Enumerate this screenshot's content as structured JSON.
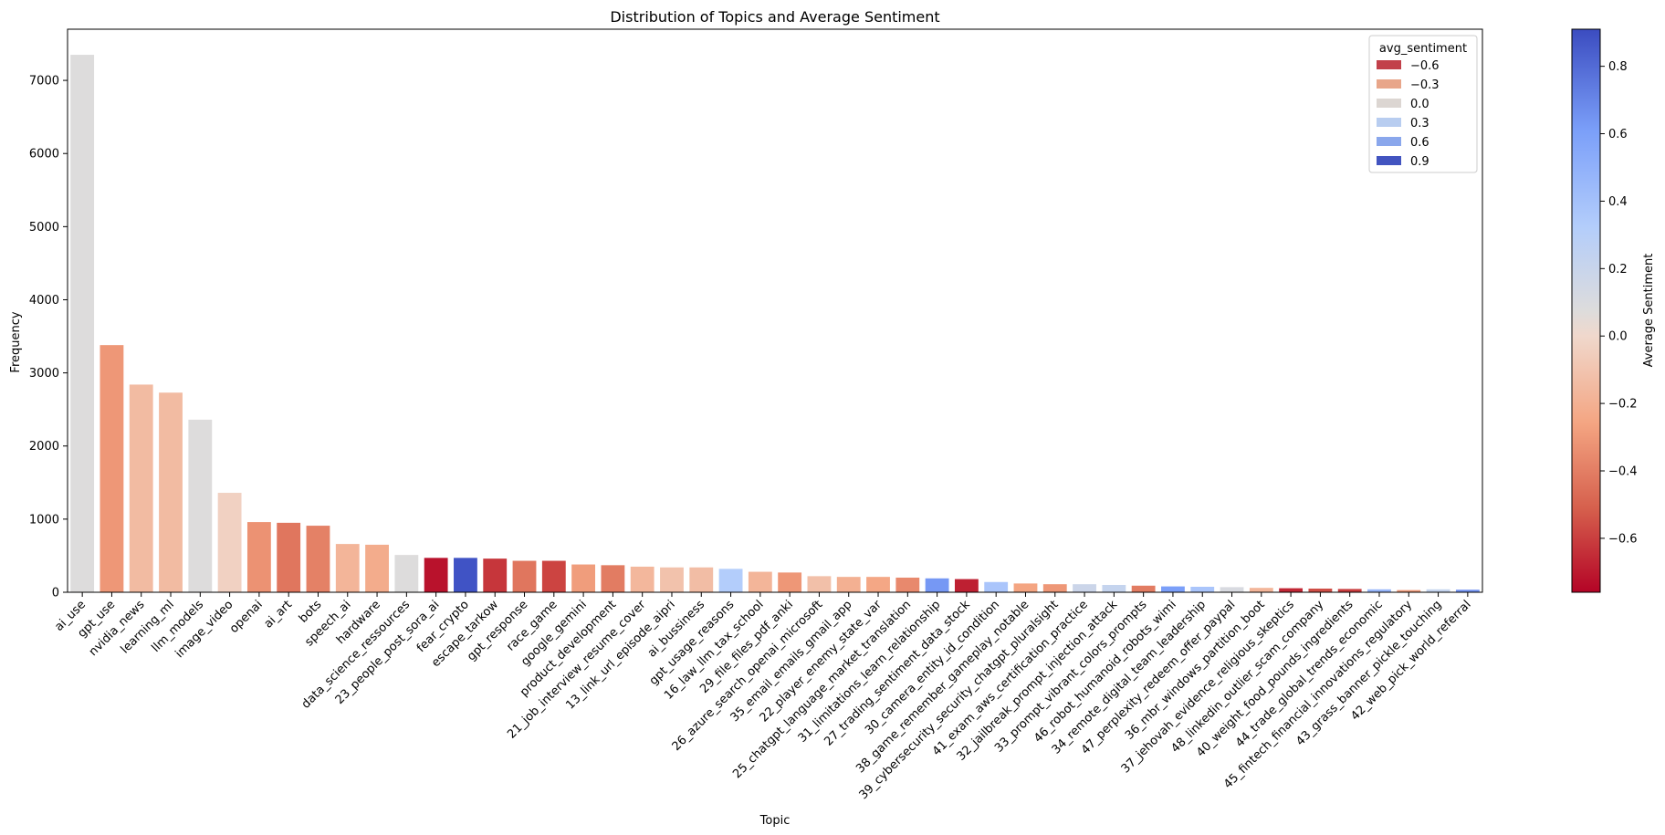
{
  "chart_data": {
    "type": "bar",
    "title": "Distribution of Topics and Average Sentiment",
    "xlabel": "Topic",
    "ylabel": "Frequency",
    "ylim": [
      0,
      7700
    ],
    "yticks": [
      0,
      1000,
      2000,
      3000,
      4000,
      5000,
      6000,
      7000
    ],
    "categories": [
      "ai_use",
      "gpt_use",
      "nvidia_news",
      "learning_ml",
      "llm_models",
      "image_video",
      "openai",
      "ai_art",
      "bots",
      "speech_ai",
      "hardware",
      "data_science_ressources",
      "23_people_post_sora_ai",
      "fear_crypto",
      "escape_tarkow",
      "gpt_response",
      "race_game",
      "google_gemini",
      "product_development",
      "21_job_interview_resume_cover",
      "13_link_url_episode_aipri",
      "ai_bussiness",
      "gpt_usage_reasons",
      "16_law_llm_tax_school",
      "29_file_files_pdf_anki",
      "26_azure_search_openai_microsoft",
      "35_email_emails_gmail_app",
      "22_player_enemy_state_var",
      "25_chatgpt_language_market_translation",
      "31_limitations_learn_relationship",
      "27_trading_sentiment_data_stock",
      "30_camera_entity_id_condition",
      "38_game_remember_gameplay_notable",
      "39_cybersecurity_security_chatgpt_pluralsight",
      "41_exam_aws_certification_practice",
      "32_jailbreak_prompt_injection_attack",
      "33_prompt_vibrant_colors_prompts",
      "46_robot_humanoid_robots_wimi",
      "34_remote_digital_team_leadership",
      "47_perplexity_redeem_offer_paypal",
      "36_mbr_windows_partition_boot",
      "37_jehovah_evidence_religious_skeptics",
      "48_linkedin_outlier_scam_company",
      "40_weight_food_pounds_ingredients",
      "44_trade_global_trends_economic",
      "45_fintech_financial_innovations_regulatory",
      "43_grass_banner_pickle_touching",
      "42_web_pick_world_referral"
    ],
    "values": [
      7350,
      3380,
      2840,
      2730,
      2360,
      1360,
      960,
      950,
      910,
      660,
      650,
      510,
      470,
      470,
      460,
      430,
      430,
      380,
      370,
      350,
      340,
      340,
      320,
      280,
      270,
      220,
      210,
      210,
      200,
      190,
      180,
      140,
      120,
      110,
      110,
      100,
      90,
      80,
      75,
      70,
      60,
      55,
      50,
      45,
      40,
      30,
      40,
      35
    ],
    "sentiment": [
      0.02,
      -0.3,
      -0.15,
      -0.15,
      0.02,
      -0.05,
      -0.32,
      -0.42,
      -0.38,
      -0.18,
      -0.22,
      0.02,
      -0.72,
      0.88,
      -0.62,
      -0.42,
      -0.58,
      -0.28,
      -0.4,
      -0.17,
      -0.12,
      -0.14,
      0.25,
      -0.18,
      -0.3,
      -0.13,
      -0.2,
      -0.24,
      -0.35,
      0.58,
      -0.68,
      0.3,
      -0.25,
      -0.3,
      0.12,
      0.15,
      -0.4,
      0.55,
      0.3,
      0.05,
      -0.18,
      -0.66,
      -0.55,
      -0.6,
      0.4,
      -0.3,
      0.15,
      0.6
    ],
    "legend": {
      "title": "avg_sentiment",
      "placement": "top-right",
      "entries": [
        {
          "label": "−0.6",
          "color": "#c2404a"
        },
        {
          "label": "−0.3",
          "color": "#e8a68a"
        },
        {
          "label": "0.0",
          "color": "#dcd6d2"
        },
        {
          "label": "0.3",
          "color": "#b8cdf0"
        },
        {
          "label": "0.6",
          "color": "#8aa7ec"
        },
        {
          "label": "0.9",
          "color": "#4254c0"
        }
      ]
    },
    "colorbar": {
      "label": "Average Sentiment",
      "range": [
        -0.76,
        0.91
      ],
      "ticks": [
        {
          "value": 0.8,
          "label": "0.8"
        },
        {
          "value": 0.6,
          "label": "0.6"
        },
        {
          "value": 0.4,
          "label": "0.4"
        },
        {
          "value": 0.2,
          "label": "0.2"
        },
        {
          "value": 0.0,
          "label": "0.0"
        },
        {
          "value": -0.2,
          "label": "−0.2"
        },
        {
          "value": -0.4,
          "label": "−0.4"
        },
        {
          "value": -0.6,
          "label": "−0.6"
        }
      ]
    },
    "grid": false
  }
}
